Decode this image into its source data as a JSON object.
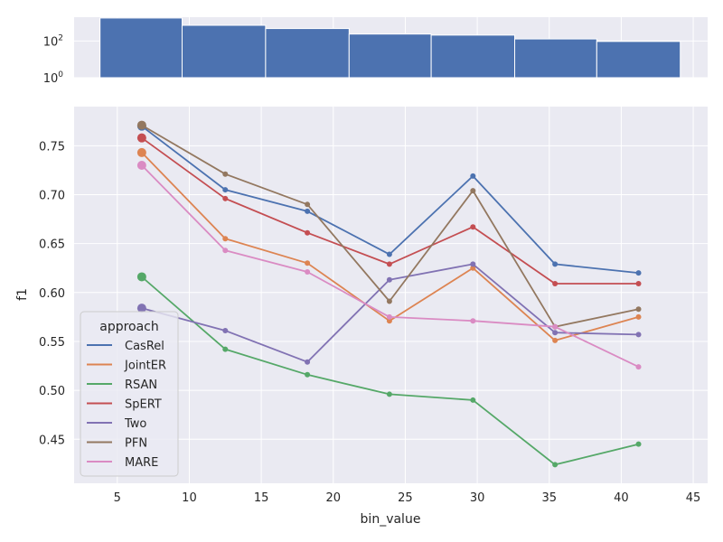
{
  "chart_data": [
    {
      "type": "bar",
      "name": "histogram",
      "yscale": "log",
      "yticks": [
        {
          "value": 1,
          "base": "10",
          "exp": "0"
        },
        {
          "value": 100,
          "base": "10",
          "exp": "2"
        }
      ],
      "ylim": [
        1,
        2000
      ],
      "bins": [
        {
          "x0": 3.8,
          "x1": 9.5,
          "count": 1800
        },
        {
          "x0": 9.5,
          "x1": 15.3,
          "count": 720
        },
        {
          "x0": 15.3,
          "x1": 21.1,
          "count": 480
        },
        {
          "x0": 21.1,
          "x1": 26.8,
          "count": 240
        },
        {
          "x0": 26.8,
          "x1": 32.6,
          "count": 210
        },
        {
          "x0": 32.6,
          "x1": 38.3,
          "count": 130
        },
        {
          "x0": 38.3,
          "x1": 44.1,
          "count": 95
        }
      ],
      "color": "#4c72b0"
    },
    {
      "type": "line",
      "name": "main",
      "xlabel": "bin_value",
      "ylabel": "f1",
      "xlim": [
        2,
        46
      ],
      "ylim": [
        0.405,
        0.79
      ],
      "xticks": [
        5,
        10,
        15,
        20,
        25,
        30,
        35,
        40,
        45
      ],
      "yticks": [
        0.45,
        0.5,
        0.55,
        0.6,
        0.65,
        0.7,
        0.75
      ],
      "ytick_labels": [
        "0.45",
        "0.50",
        "0.55",
        "0.60",
        "0.65",
        "0.70",
        "0.75"
      ],
      "x": [
        6.7,
        12.5,
        18.2,
        23.9,
        29.7,
        35.4,
        41.2
      ],
      "first_point_size": "large",
      "legend_title": "approach",
      "legend_position": "lower-left",
      "grid": true,
      "series": [
        {
          "name": "CasRel",
          "color": "#4c72b0",
          "values": [
            0.77,
            0.705,
            0.683,
            0.639,
            0.719,
            0.629,
            0.62
          ]
        },
        {
          "name": "JointER",
          "color": "#dd8452",
          "values": [
            0.743,
            0.655,
            0.63,
            0.571,
            0.625,
            0.551,
            0.575
          ]
        },
        {
          "name": "RSAN",
          "color": "#55a868",
          "values": [
            0.616,
            0.542,
            0.516,
            0.496,
            0.49,
            0.424,
            0.445
          ]
        },
        {
          "name": "SpERT",
          "color": "#c44e52",
          "values": [
            0.758,
            0.696,
            0.661,
            0.629,
            0.667,
            0.609,
            0.609
          ]
        },
        {
          "name": "Two",
          "color": "#8172b3",
          "values": [
            0.584,
            0.561,
            0.529,
            0.613,
            0.629,
            0.559,
            0.557
          ]
        },
        {
          "name": "PFN",
          "color": "#937860",
          "values": [
            0.771,
            0.721,
            0.69,
            0.591,
            0.704,
            0.565,
            0.583
          ]
        },
        {
          "name": "MARE",
          "color": "#da8bc3",
          "values": [
            0.73,
            0.643,
            0.621,
            0.575,
            0.571,
            0.565,
            0.524
          ]
        }
      ]
    }
  ]
}
